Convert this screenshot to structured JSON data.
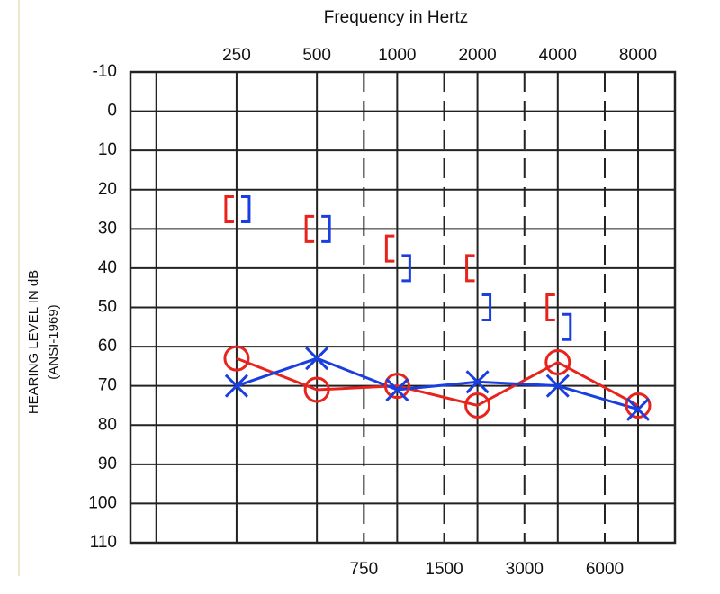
{
  "chart_data": {
    "type": "audiogram",
    "title": "Frequency in Hertz",
    "y_label": "HEARING LEVEL IN dB",
    "y_label_2": "(ANSI-1969)",
    "x_scale": "log",
    "xlim": [
      100,
      11000
    ],
    "xticks": [
      {
        "value": 125,
        "label": null
      },
      250,
      500,
      1000,
      2000,
      4000,
      8000
    ],
    "xticks_minor": [
      750,
      1500,
      3000,
      6000
    ],
    "ylim": [
      -10,
      110
    ],
    "y_inverted": true,
    "yticks": [
      -10,
      0,
      10,
      20,
      30,
      40,
      50,
      60,
      70,
      80,
      90,
      100,
      110
    ],
    "grid": true,
    "x": [
      250,
      500,
      1000,
      2000,
      4000,
      8000
    ],
    "series": [
      {
        "color": "#e8231c",
        "marker": "circle",
        "line": true,
        "values": [
          63,
          71,
          70,
          75,
          64,
          75
        ]
      },
      {
        "color": "#1a3fe0",
        "marker": "x",
        "line": true,
        "values": [
          70,
          63,
          71,
          69,
          70,
          76
        ]
      },
      {
        "color": "#e8231c",
        "marker": "left-bracket",
        "line": false,
        "values": [
          25,
          30,
          35,
          40,
          50,
          null
        ]
      },
      {
        "color": "#1a3fe0",
        "marker": "right-bracket",
        "line": false,
        "values": [
          25,
          30,
          40,
          50,
          55,
          null
        ]
      }
    ]
  }
}
